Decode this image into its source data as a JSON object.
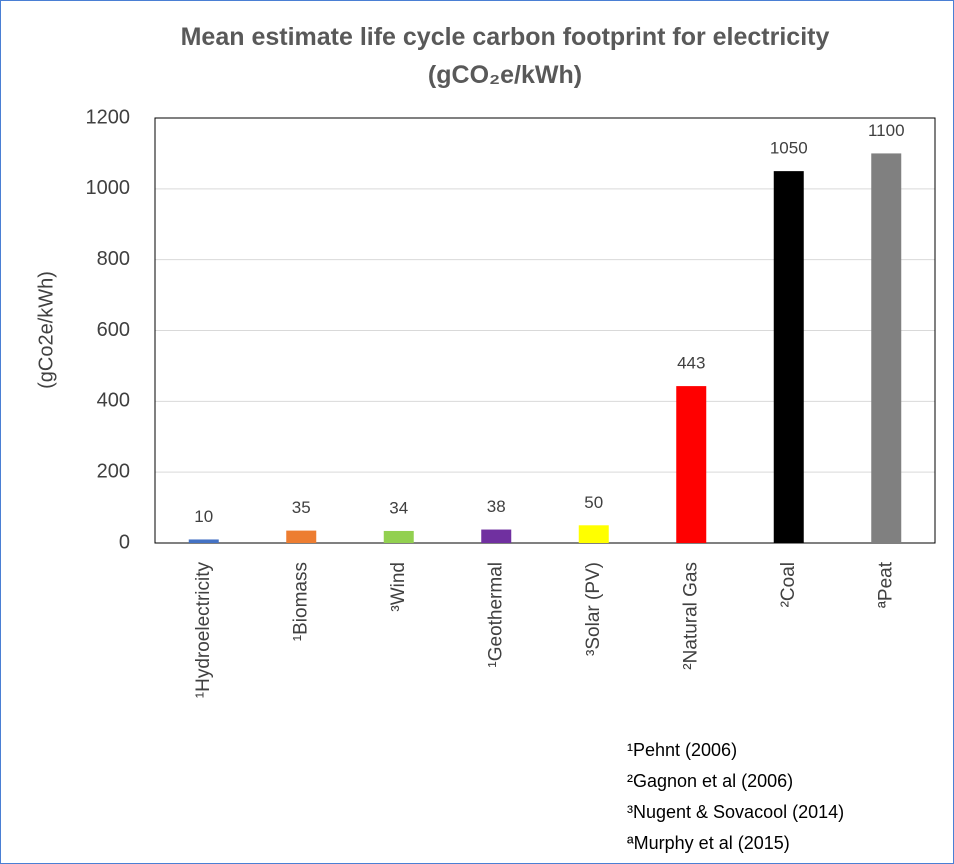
{
  "chart_data": {
    "type": "bar",
    "title": "Mean estimate life cycle carbon footprint for electricity (gCO₂e/kWh)",
    "y_label": "(gCo2e/kWh)",
    "categories": [
      "¹Hydroelectricity",
      "¹Biomass",
      "³Wind",
      "¹Geothermal",
      "³Solar (PV)",
      "²Natural Gas",
      "²Coal",
      "ªPeat"
    ],
    "values": [
      10,
      35,
      34,
      38,
      50,
      443,
      1050,
      1100
    ],
    "colors": [
      "#4472c4",
      "#ed7d31",
      "#92d050",
      "#7030a0",
      "#ffff00",
      "#ff0000",
      "#000000",
      "#808080"
    ],
    "ylim": [
      0,
      1200
    ],
    "yticks": [
      0,
      200,
      400,
      600,
      800,
      1000,
      1200
    ],
    "grid": true,
    "annotations": [
      "¹Pehnt (2006)",
      "²Gagnon et al (2006)",
      "³Nugent & Sovacool (2014)",
      "ªMurphy et al (2015)"
    ]
  }
}
